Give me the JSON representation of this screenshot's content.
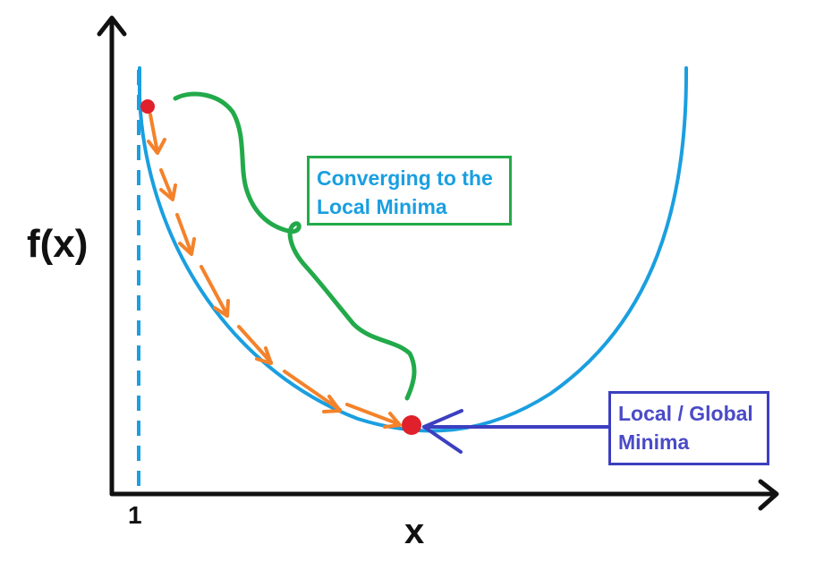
{
  "axes": {
    "y_label": "f(x)",
    "x_label": "x",
    "x_tick": "1"
  },
  "annotations": {
    "converging": {
      "line1": "Converging to the",
      "line2": "Local Minima"
    },
    "minimum": {
      "line1": "Local / Global",
      "line2": "Minima"
    }
  },
  "colors": {
    "axis": "#111111",
    "curve": "#1a9fe0",
    "descent_arrows": "#f4822a",
    "points": "#e0202a",
    "converging_callout": "#22aa4a",
    "minimum_callout": "#3c3fc0"
  },
  "icons": [
    "x-axis-arrowhead-icon",
    "y-axis-arrowhead-icon",
    "pointer-arrow-icon"
  ]
}
